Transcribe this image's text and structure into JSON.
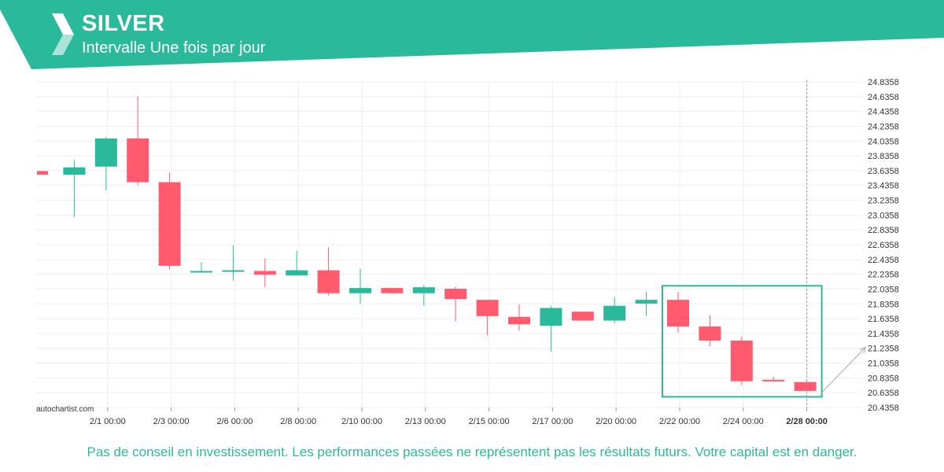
{
  "header": {
    "title": "SILVER",
    "subtitle": "Intervalle Une fois par jour"
  },
  "watermark": "autochartist.com",
  "disclaimer": "Pas de conseil en investissement. Les performances passées ne représentent pas les résultats futurs. Votre capital est en danger.",
  "colors": {
    "brand": "#2bb99b",
    "up": "#2bb99b",
    "down": "#ff5a6e",
    "grid": "#eeeeee",
    "axis_text": "#333333"
  },
  "chart_data": {
    "type": "candlestick",
    "title": "SILVER",
    "subtitle": "Intervalle Une fois par jour",
    "ylim": [
      20.4358,
      24.8358
    ],
    "y_ticks": [
      24.8358,
      24.6358,
      24.4358,
      24.2358,
      24.0358,
      23.8358,
      23.6358,
      23.4358,
      23.2358,
      23.0358,
      22.8358,
      22.6358,
      22.4358,
      22.2358,
      22.0358,
      21.8358,
      21.6358,
      21.4358,
      21.2358,
      21.0358,
      20.8358,
      20.6358,
      20.4358
    ],
    "x_tick_labels": [
      {
        "index": 2,
        "label": "2/1 00:00"
      },
      {
        "index": 4,
        "label": "2/3 00:00"
      },
      {
        "index": 6,
        "label": "2/6 00:00"
      },
      {
        "index": 8,
        "label": "2/8 00:00"
      },
      {
        "index": 10,
        "label": "2/10 00:00"
      },
      {
        "index": 12,
        "label": "2/13 00:00"
      },
      {
        "index": 14,
        "label": "2/15 00:00"
      },
      {
        "index": 16,
        "label": "2/17 00:00"
      },
      {
        "index": 18,
        "label": "2/20 00:00"
      },
      {
        "index": 20,
        "label": "2/22 00:00"
      },
      {
        "index": 22,
        "label": "2/24 00:00"
      },
      {
        "index": 24,
        "label": "2/28 00:00",
        "bold": true
      }
    ],
    "candles": [
      {
        "o": 23.63,
        "h": 23.63,
        "l": 23.58,
        "c": 23.58
      },
      {
        "o": 23.58,
        "h": 23.78,
        "l": 23.01,
        "c": 23.68
      },
      {
        "o": 23.69,
        "h": 24.09,
        "l": 23.37,
        "c": 24.07
      },
      {
        "o": 24.07,
        "h": 24.64,
        "l": 23.44,
        "c": 23.48
      },
      {
        "o": 23.48,
        "h": 23.61,
        "l": 22.3,
        "c": 22.35
      },
      {
        "o": 22.26,
        "h": 22.4,
        "l": 22.26,
        "c": 22.28
      },
      {
        "o": 22.29,
        "h": 22.63,
        "l": 22.15,
        "c": 22.29
      },
      {
        "o": 22.28,
        "h": 22.45,
        "l": 22.06,
        "c": 22.23
      },
      {
        "o": 22.22,
        "h": 22.55,
        "l": 22.22,
        "c": 22.29
      },
      {
        "o": 22.29,
        "h": 22.6,
        "l": 21.95,
        "c": 21.98
      },
      {
        "o": 21.98,
        "h": 22.31,
        "l": 21.84,
        "c": 22.05
      },
      {
        "o": 22.05,
        "h": 22.05,
        "l": 21.97,
        "c": 21.98
      },
      {
        "o": 21.98,
        "h": 22.09,
        "l": 21.81,
        "c": 22.06
      },
      {
        "o": 22.04,
        "h": 22.07,
        "l": 21.6,
        "c": 21.9
      },
      {
        "o": 21.89,
        "h": 21.89,
        "l": 21.41,
        "c": 21.67
      },
      {
        "o": 21.66,
        "h": 21.83,
        "l": 21.47,
        "c": 21.56
      },
      {
        "o": 21.54,
        "h": 21.81,
        "l": 21.19,
        "c": 21.78
      },
      {
        "o": 21.73,
        "h": 21.73,
        "l": 21.61,
        "c": 21.61
      },
      {
        "o": 21.61,
        "h": 21.93,
        "l": 21.57,
        "c": 21.81
      },
      {
        "o": 21.84,
        "h": 22.0,
        "l": 21.67,
        "c": 21.89
      },
      {
        "o": 21.89,
        "h": 22.0,
        "l": 21.45,
        "c": 21.53
      },
      {
        "o": 21.53,
        "h": 21.68,
        "l": 21.26,
        "c": 21.34
      },
      {
        "o": 21.34,
        "h": 21.39,
        "l": 20.74,
        "c": 20.79
      },
      {
        "o": 20.81,
        "h": 20.85,
        "l": 20.78,
        "c": 20.8
      },
      {
        "o": 20.78,
        "h": 20.78,
        "l": 20.66,
        "c": 20.66
      }
    ],
    "highlight": {
      "from_index": 20,
      "to_index": 24,
      "y_top": 22.08,
      "y_bottom": 20.58
    },
    "projection_arrow": {
      "from": [
        24.5,
        20.63
      ],
      "to": [
        25.9,
        21.25
      ]
    },
    "vertical_marker_index": 24,
    "grid": true,
    "legend": "none"
  }
}
